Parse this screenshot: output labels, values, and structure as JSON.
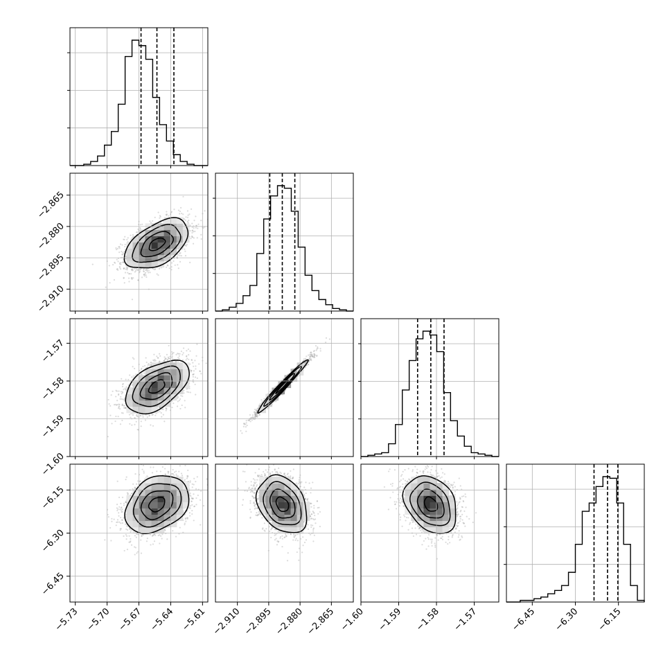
{
  "chart_data": {
    "type": "corner",
    "n_params": 4,
    "grid": true,
    "colors": {
      "hist": "#000000",
      "contour": "#000000",
      "density_dark": "#000000",
      "scatter": "#999999",
      "grid": "#b0b0b0",
      "quantile_lines": "#000000"
    },
    "params": [
      {
        "range": [
          -5.735,
          -5.605
        ],
        "ticks": [
          -5.73,
          -5.7,
          -5.67,
          -5.64,
          -5.61
        ],
        "tick_labels": [
          "−5.73",
          "−5.70",
          "−5.67",
          "−5.64",
          "−5.61"
        ],
        "mean": -5.653,
        "std": 0.015,
        "quantiles": [
          -5.668,
          -5.653,
          -5.637
        ]
      },
      {
        "range": [
          -2.9205,
          -2.8545
        ],
        "ticks": [
          -2.91,
          -2.895,
          -2.88,
          -2.865
        ],
        "tick_labels": [
          "−2.910",
          "−2.895",
          "−2.880",
          "−2.865"
        ],
        "mean": -2.8885,
        "std": 0.006,
        "quantiles": [
          -2.8945,
          -2.8885,
          -2.8825
        ]
      },
      {
        "range": [
          -1.6,
          -1.5635
        ],
        "ticks": [
          -1.6,
          -1.59,
          -1.58,
          -1.57
        ],
        "tick_labels": [
          "−1.60",
          "−1.59",
          "−1.58",
          "−1.57"
        ],
        "mean": -1.5815,
        "std": 0.0035,
        "quantiles": [
          -1.585,
          -1.5815,
          -1.578
        ]
      },
      {
        "range": [
          -6.54,
          -6.06
        ],
        "ticks": [
          -6.45,
          -6.3,
          -6.15
        ],
        "tick_labels": [
          "−6.45",
          "−6.30",
          "−6.15"
        ],
        "mean": -6.2,
        "std": 0.05,
        "quantiles": [
          -6.235,
          -6.188,
          -6.152
        ]
      }
    ],
    "histograms": [
      {
        "counts": [
          0,
          0,
          1,
          3,
          7,
          15,
          25,
          45,
          80,
          92,
          88,
          78,
          50,
          30,
          18,
          8,
          3,
          1,
          0,
          0
        ]
      },
      {
        "counts": [
          0,
          1,
          3,
          6,
          12,
          20,
          45,
          72,
          90,
          98,
          96,
          78,
          50,
          28,
          16,
          9,
          5,
          2,
          1,
          0
        ]
      },
      {
        "counts": [
          0,
          1,
          2,
          3,
          10,
          25,
          52,
          75,
          92,
          98,
          95,
          82,
          50,
          28,
          16,
          8,
          3,
          2,
          1,
          0
        ]
      },
      {
        "counts": [
          0,
          0,
          1,
          1,
          2,
          3,
          5,
          7,
          10,
          18,
          35,
          55,
          60,
          70,
          76,
          75,
          60,
          35,
          10,
          1
        ]
      }
    ],
    "correlations": {
      "1-0": 0.5,
      "2-0": 0.5,
      "2-1": 0.98,
      "3-0": 0.3,
      "3-1": -0.3,
      "3-2": -0.3
    },
    "contour_levels_sigma": [
      0.5,
      1.0,
      1.5,
      2.0
    ]
  }
}
